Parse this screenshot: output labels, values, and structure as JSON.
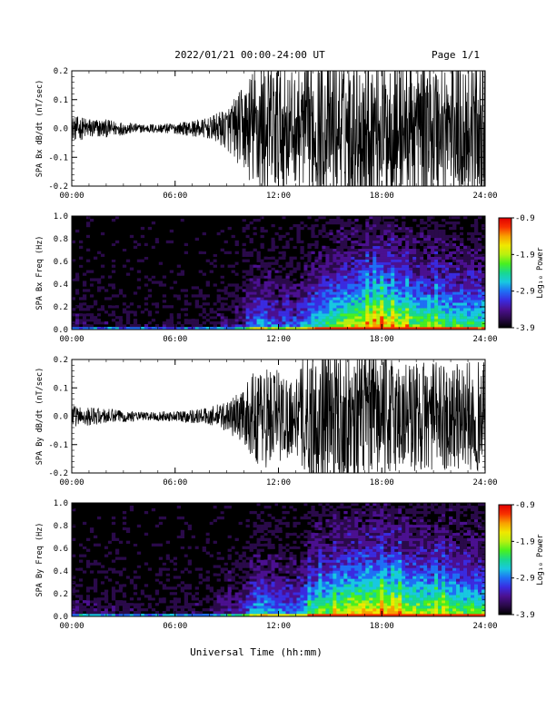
{
  "header": {
    "title": "2022/01/21  00:00-24:00 UT",
    "page": "Page 1/1"
  },
  "footer": {
    "xlabel": "Universal Time (hh:mm)"
  },
  "x_tick_labels": [
    "00:00",
    "06:00",
    "12:00",
    "18:00",
    "24:00"
  ],
  "colorbar": {
    "label": "Log₁₀ Power",
    "ticks": [
      "-0.9",
      "-1.9",
      "-2.9",
      "-3.9"
    ],
    "range": [
      -3.9,
      -0.9
    ],
    "colors": [
      "#000000",
      "#2a0a4a",
      "#4b1090",
      "#3a2be0",
      "#1f6ff5",
      "#18c8e0",
      "#18d890",
      "#48f020",
      "#b8f010",
      "#f0e800",
      "#f8a000",
      "#f83000",
      "#e00000"
    ]
  },
  "chart_data": [
    {
      "type": "line",
      "ylabel": "SPA Bx dB/dt (nT/sec)",
      "x_range_hours": [
        0,
        24
      ],
      "ylim": [
        -0.2,
        0.2
      ],
      "y_ticks": [
        "0.2",
        "0.1",
        "0.0",
        "-0.1",
        "-0.2"
      ],
      "series": [
        {
          "color": "#000000",
          "envelope_hours": [
            0,
            2,
            4,
            6,
            8,
            9,
            10,
            10.5,
            11,
            12,
            13,
            14,
            16,
            18,
            20,
            22,
            24
          ],
          "envelope_amplitude": [
            0.035,
            0.025,
            0.012,
            0.015,
            0.03,
            0.06,
            0.12,
            0.17,
            0.2,
            0.2,
            0.15,
            0.2,
            0.2,
            0.2,
            0.2,
            0.2,
            0.2
          ]
        }
      ]
    },
    {
      "type": "heatmap",
      "ylabel": "SPA Bx Freq (Hz)",
      "x_range_hours": [
        0,
        24
      ],
      "ylim": [
        0,
        1.0
      ],
      "y_ticks": [
        "1.0",
        "0.8",
        "0.6",
        "0.4",
        "0.2",
        "0.0"
      ],
      "activity_hours": [
        0,
        2,
        4,
        6,
        8,
        10,
        10.5,
        11,
        12,
        13,
        14,
        16,
        18,
        20,
        22,
        24
      ],
      "activity_level": [
        0.12,
        0.1,
        0.08,
        0.08,
        0.1,
        0.2,
        0.4,
        0.45,
        0.35,
        0.35,
        0.55,
        0.75,
        0.85,
        0.7,
        0.65,
        0.6
      ]
    },
    {
      "type": "line",
      "ylabel": "SPA By dB/dt (nT/sec)",
      "x_range_hours": [
        0,
        24
      ],
      "ylim": [
        -0.2,
        0.2
      ],
      "y_ticks": [
        "0.2",
        "0.1",
        "0.0",
        "-0.1",
        "-0.2"
      ],
      "series": [
        {
          "color": "#000000",
          "envelope_hours": [
            0,
            2,
            4,
            6,
            8,
            9,
            10,
            10.5,
            11,
            12,
            13,
            13.5,
            14,
            16,
            18,
            20,
            22,
            24
          ],
          "envelope_amplitude": [
            0.03,
            0.022,
            0.012,
            0.015,
            0.025,
            0.045,
            0.08,
            0.12,
            0.15,
            0.14,
            0.1,
            0.18,
            0.2,
            0.2,
            0.18,
            0.16,
            0.15,
            0.16
          ]
        }
      ]
    },
    {
      "type": "heatmap",
      "ylabel": "SPA By Freq (Hz)",
      "x_range_hours": [
        0,
        24
      ],
      "ylim": [
        0,
        1.0
      ],
      "y_ticks": [
        "1.0",
        "0.8",
        "0.6",
        "0.4",
        "0.2",
        "0.0"
      ],
      "activity_hours": [
        0,
        2,
        4,
        6,
        8,
        10,
        10.5,
        11,
        12,
        13,
        14,
        16,
        18,
        20,
        22,
        24
      ],
      "activity_level": [
        0.15,
        0.12,
        0.1,
        0.1,
        0.12,
        0.25,
        0.45,
        0.5,
        0.4,
        0.4,
        0.6,
        0.8,
        0.85,
        0.75,
        0.7,
        0.65
      ]
    }
  ]
}
